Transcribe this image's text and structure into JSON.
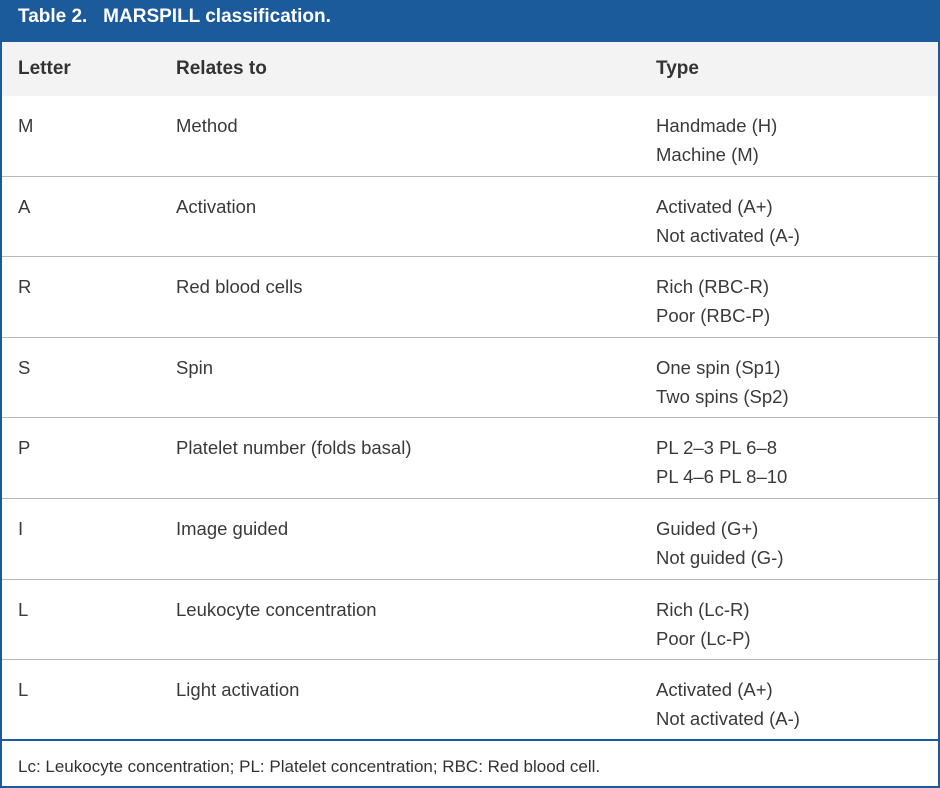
{
  "table": {
    "title": "Table 2.   MARSPILL classification.",
    "headers": {
      "letter": "Letter",
      "relates_to": "Relates to",
      "type": "Type"
    },
    "rows": [
      {
        "letter": "M",
        "relates_to": "Method",
        "type": [
          "Handmade (H)",
          "Machine (M)"
        ]
      },
      {
        "letter": "A",
        "relates_to": "Activation",
        "type": [
          "Activated (A+)",
          "Not activated (A-)"
        ]
      },
      {
        "letter": "R",
        "relates_to": "Red blood cells",
        "type": [
          "Rich (RBC-R)",
          "Poor (RBC-P)"
        ]
      },
      {
        "letter": "S",
        "relates_to": "Spin",
        "type": [
          "One spin (Sp1)",
          "Two spins (Sp2)"
        ]
      },
      {
        "letter": "P",
        "relates_to": "Platelet number (folds basal)",
        "type": [
          "PL 2–3 PL 6–8",
          "PL 4–6 PL 8–10"
        ]
      },
      {
        "letter": "I",
        "relates_to": "Image guided",
        "type": [
          "Guided (G+)",
          "Not guided (G-)"
        ]
      },
      {
        "letter": "L",
        "relates_to": "Leukocyte concentration",
        "type": [
          "Rich (Lc-R)",
          "Poor (Lc-P)"
        ]
      },
      {
        "letter": "L",
        "relates_to": "Light activation",
        "type": [
          "Activated (A+)",
          "Not activated (A-)"
        ]
      }
    ],
    "footnote": "Lc: Leukocyte concentration; PL: Platelet concentration; RBC: Red blood cell."
  },
  "colors": {
    "accent": "#1b5a9b",
    "header_bg": "#f3f3f3",
    "divider": "#b8b8b8"
  }
}
